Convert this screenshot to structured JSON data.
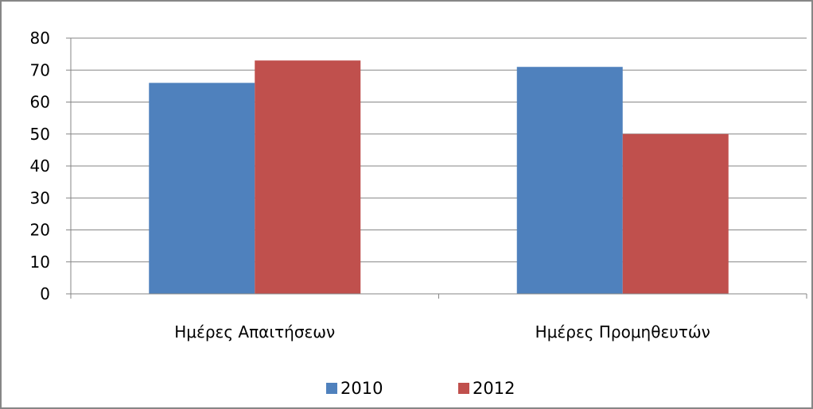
{
  "chart_data": {
    "type": "bar",
    "categories": [
      "Ημέρες Απαιτήσεων",
      "Ημέρες Προμηθευτών"
    ],
    "series": [
      {
        "name": "2010",
        "values": [
          66,
          71
        ],
        "color": "#4F81BD"
      },
      {
        "name": "2012",
        "values": [
          73,
          50
        ],
        "color": "#C0504D"
      }
    ],
    "title": "",
    "xlabel": "",
    "ylabel": "",
    "ylim": [
      0,
      80
    ],
    "yticks": [
      0,
      10,
      20,
      30,
      40,
      50,
      60,
      70,
      80
    ],
    "grid": true,
    "legend": "bottom"
  }
}
